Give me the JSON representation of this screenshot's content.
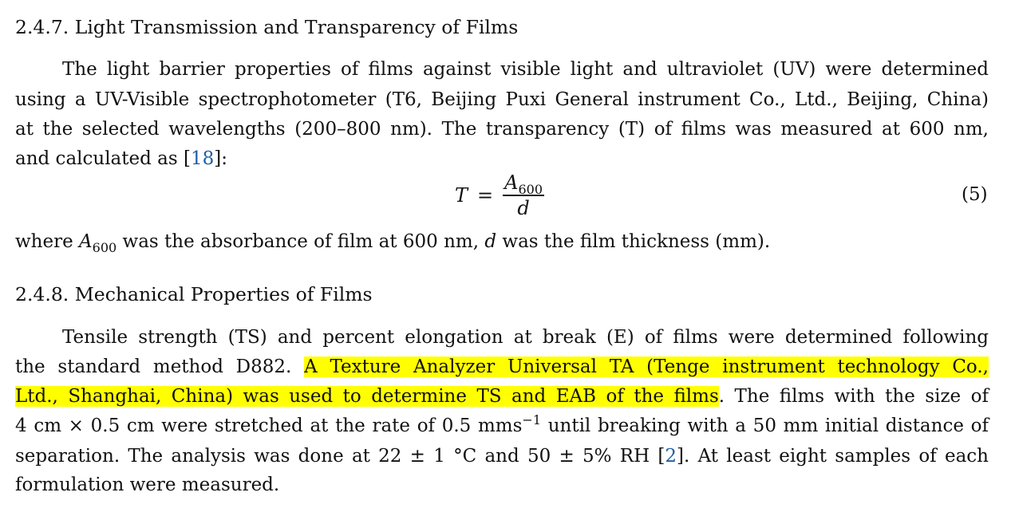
{
  "section_247": {
    "heading": "2.4.7. Light Transmission and Transparency of Films"
  },
  "para1": {
    "lines": [
      "The light barrier properties of films against visible light and ultraviolet (UV) were determined",
      "using a UV-Visible spectrophotometer (T6, Beijing Puxi General instrument Co., Ltd., Beijing, China)",
      "at the selected wavelengths (200–800 nm).  The transparency (T) of films was measured at 600 nm,"
    ],
    "line4_pre": "and calculated as [",
    "line4_ref": "18",
    "line4_post": "]:"
  },
  "equation": {
    "lhs": "T",
    "eq": "=",
    "num_var": "A",
    "num_sub": "600",
    "den": "d",
    "number": "(5)"
  },
  "where": {
    "pre": "where ",
    "var": "A",
    "sub": "600",
    "mid": " was the absorbance of film at 600 nm, ",
    "var2": "d",
    "post": " was the film thickness (mm)."
  },
  "section_248": {
    "heading": "2.4.8. Mechanical Properties of Films"
  },
  "para2": {
    "line1": "Tensile strength (TS) and percent elongation at break (E) of films were determined following",
    "line2_pre": "the standard method D882.  ",
    "line2_hl": "A Texture Analyzer Universal TA (Tenge instrument technology Co.,",
    "line3_hl": "Ltd., Shanghai, China) was used to determine TS and EAB of the films",
    "line3_post": ".  The films with the size of",
    "line4_pre": "4 cm × 0.5 cm were stretched at the rate of 0.5 mms",
    "line4_sup": "−1",
    "line4_post": " until breaking with a 50 mm initial distance of",
    "line5_pre": "separation.  The analysis was done at 22 ± 1 °C and 50 ± 5% RH [",
    "line5_ref": "2",
    "line5_post": "].  At least eight samples of each",
    "line6": "formulation were measured."
  },
  "colors": {
    "link": "#1f5fa8",
    "highlight": "#ffff00"
  }
}
